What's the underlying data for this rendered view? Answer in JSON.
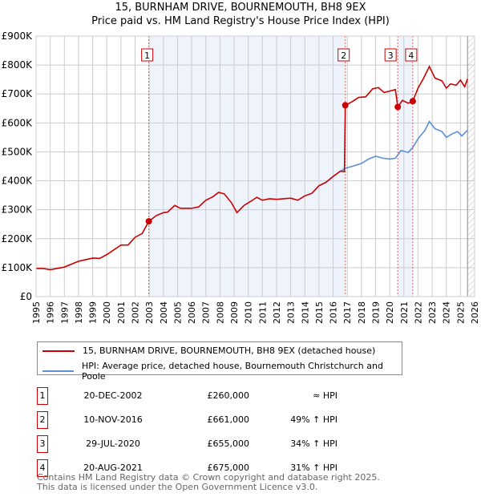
{
  "chart_data": {
    "type": "line",
    "title": "15, BURNHAM DRIVE, BOURNEMOUTH, BH8 9EX",
    "subtitle": "Price paid vs. HM Land Registry's House Price Index (HPI)",
    "xlim": [
      1995,
      2026
    ],
    "ylim": [
      0,
      900000
    ],
    "y_ticks": [
      {
        "v": 0,
        "label": "£0"
      },
      {
        "v": 100000,
        "label": "£100K"
      },
      {
        "v": 200000,
        "label": "£200K"
      },
      {
        "v": 300000,
        "label": "£300K"
      },
      {
        "v": 400000,
        "label": "£400K"
      },
      {
        "v": 500000,
        "label": "£500K"
      },
      {
        "v": 600000,
        "label": "£600K"
      },
      {
        "v": 700000,
        "label": "£700K"
      },
      {
        "v": 800000,
        "label": "£800K"
      },
      {
        "v": 900000,
        "label": "£900K"
      }
    ],
    "x_ticks": [
      "1995",
      "1996",
      "1997",
      "1998",
      "1999",
      "2000",
      "2001",
      "2002",
      "2003",
      "2004",
      "2005",
      "2006",
      "2007",
      "2008",
      "2009",
      "2010",
      "2011",
      "2012",
      "2013",
      "2014",
      "2015",
      "2016",
      "2017",
      "2018",
      "2019",
      "2020",
      "2021",
      "2022",
      "2023",
      "2024",
      "2025",
      "2026"
    ],
    "grid": true,
    "colors": {
      "property": "#cc0000",
      "hpi": "#5b8fd6",
      "shade": "#eef3fc",
      "marker_line": "#e06060"
    },
    "shaded_ranges": [
      [
        2002.97,
        2016.86
      ],
      [
        2020.57,
        2021.63
      ]
    ],
    "forecast_hatch_from": 2025.5,
    "series": [
      {
        "name": "15, BURNHAM DRIVE, BOURNEMOUTH, BH8 9EX (detached house)",
        "key": "property",
        "x": [
          1995,
          1995.5,
          1996,
          1997,
          1998,
          1999,
          1999.5,
          2000,
          2001,
          2001.5,
          2002,
          2002.5,
          2002.97,
          2003.5,
          2004,
          2004.3,
          2004.8,
          2005.2,
          2006,
          2006.5,
          2007,
          2007.5,
          2007.9,
          2008.3,
          2008.8,
          2009.2,
          2009.7,
          2010.3,
          2010.6,
          2011,
          2011.5,
          2012,
          2012.5,
          2013,
          2013.5,
          2014,
          2014.5,
          2015,
          2015.5,
          2016,
          2016.5,
          2016.8,
          2016.86,
          2017.3,
          2017.8,
          2018.3,
          2018.8,
          2019.2,
          2019.6,
          2020,
          2020.4,
          2020.57,
          2020.9,
          2021.3,
          2021.63,
          2022,
          2022.4,
          2022.8,
          2023.2,
          2023.7,
          2024,
          2024.3,
          2024.7,
          2025,
          2025.3,
          2025.5
        ],
        "y": [
          97000,
          97000,
          93000,
          102000,
          122000,
          133000,
          132000,
          145000,
          178000,
          178000,
          205000,
          218000,
          260000,
          280000,
          290000,
          292000,
          315000,
          305000,
          305000,
          310000,
          333000,
          345000,
          360000,
          355000,
          325000,
          290000,
          315000,
          333000,
          343000,
          333000,
          338000,
          336000,
          338000,
          340000,
          333000,
          348000,
          357000,
          383000,
          395000,
          415000,
          433000,
          432000,
          661000,
          672000,
          688000,
          690000,
          718000,
          722000,
          705000,
          710000,
          715000,
          655000,
          678000,
          668000,
          675000,
          720000,
          755000,
          795000,
          755000,
          745000,
          720000,
          735000,
          730000,
          748000,
          725000,
          752000
        ]
      },
      {
        "name": "HPI: Average price, detached house, Bournemouth Christchurch and Poole",
        "key": "hpi",
        "x": [
          2015,
          2015.5,
          2016,
          2016.5,
          2016.86,
          2017.5,
          2018,
          2018.5,
          2019,
          2019.5,
          2020,
          2020.4,
          2020.8,
          2021.3,
          2021.63,
          2022,
          2022.5,
          2022.8,
          2023.2,
          2023.7,
          2024,
          2024.4,
          2024.8,
          2025.1,
          2025.5
        ],
        "y": [
          383000,
          395000,
          415000,
          433000,
          443000,
          452000,
          460000,
          475000,
          485000,
          478000,
          475000,
          478000,
          505000,
          498000,
          515000,
          545000,
          575000,
          605000,
          580000,
          570000,
          550000,
          562000,
          570000,
          555000,
          575000
        ]
      }
    ],
    "sales": [
      {
        "n": "1",
        "x": 2002.97,
        "y": 260000
      },
      {
        "n": "2",
        "x": 2016.86,
        "y": 661000
      },
      {
        "n": "3",
        "x": 2020.57,
        "y": 655000
      },
      {
        "n": "4",
        "x": 2021.63,
        "y": 675000
      }
    ]
  },
  "legend": {
    "property": "15, BURNHAM DRIVE, BOURNEMOUTH, BH8 9EX (detached house)",
    "hpi": "HPI: Average price, detached house, Bournemouth Christchurch and Poole"
  },
  "table": [
    {
      "n": "1",
      "date": "20-DEC-2002",
      "price": "£260,000",
      "hpi": "≈ HPI"
    },
    {
      "n": "2",
      "date": "10-NOV-2016",
      "price": "£661,000",
      "hpi": "49% ↑ HPI"
    },
    {
      "n": "3",
      "date": "29-JUL-2020",
      "price": "£655,000",
      "hpi": "34% ↑ HPI"
    },
    {
      "n": "4",
      "date": "20-AUG-2021",
      "price": "£675,000",
      "hpi": "31% ↑ HPI"
    }
  ],
  "footer": {
    "line1": "Contains HM Land Registry data © Crown copyright and database right 2025.",
    "line2": "This data is licensed under the Open Government Licence v3.0."
  }
}
